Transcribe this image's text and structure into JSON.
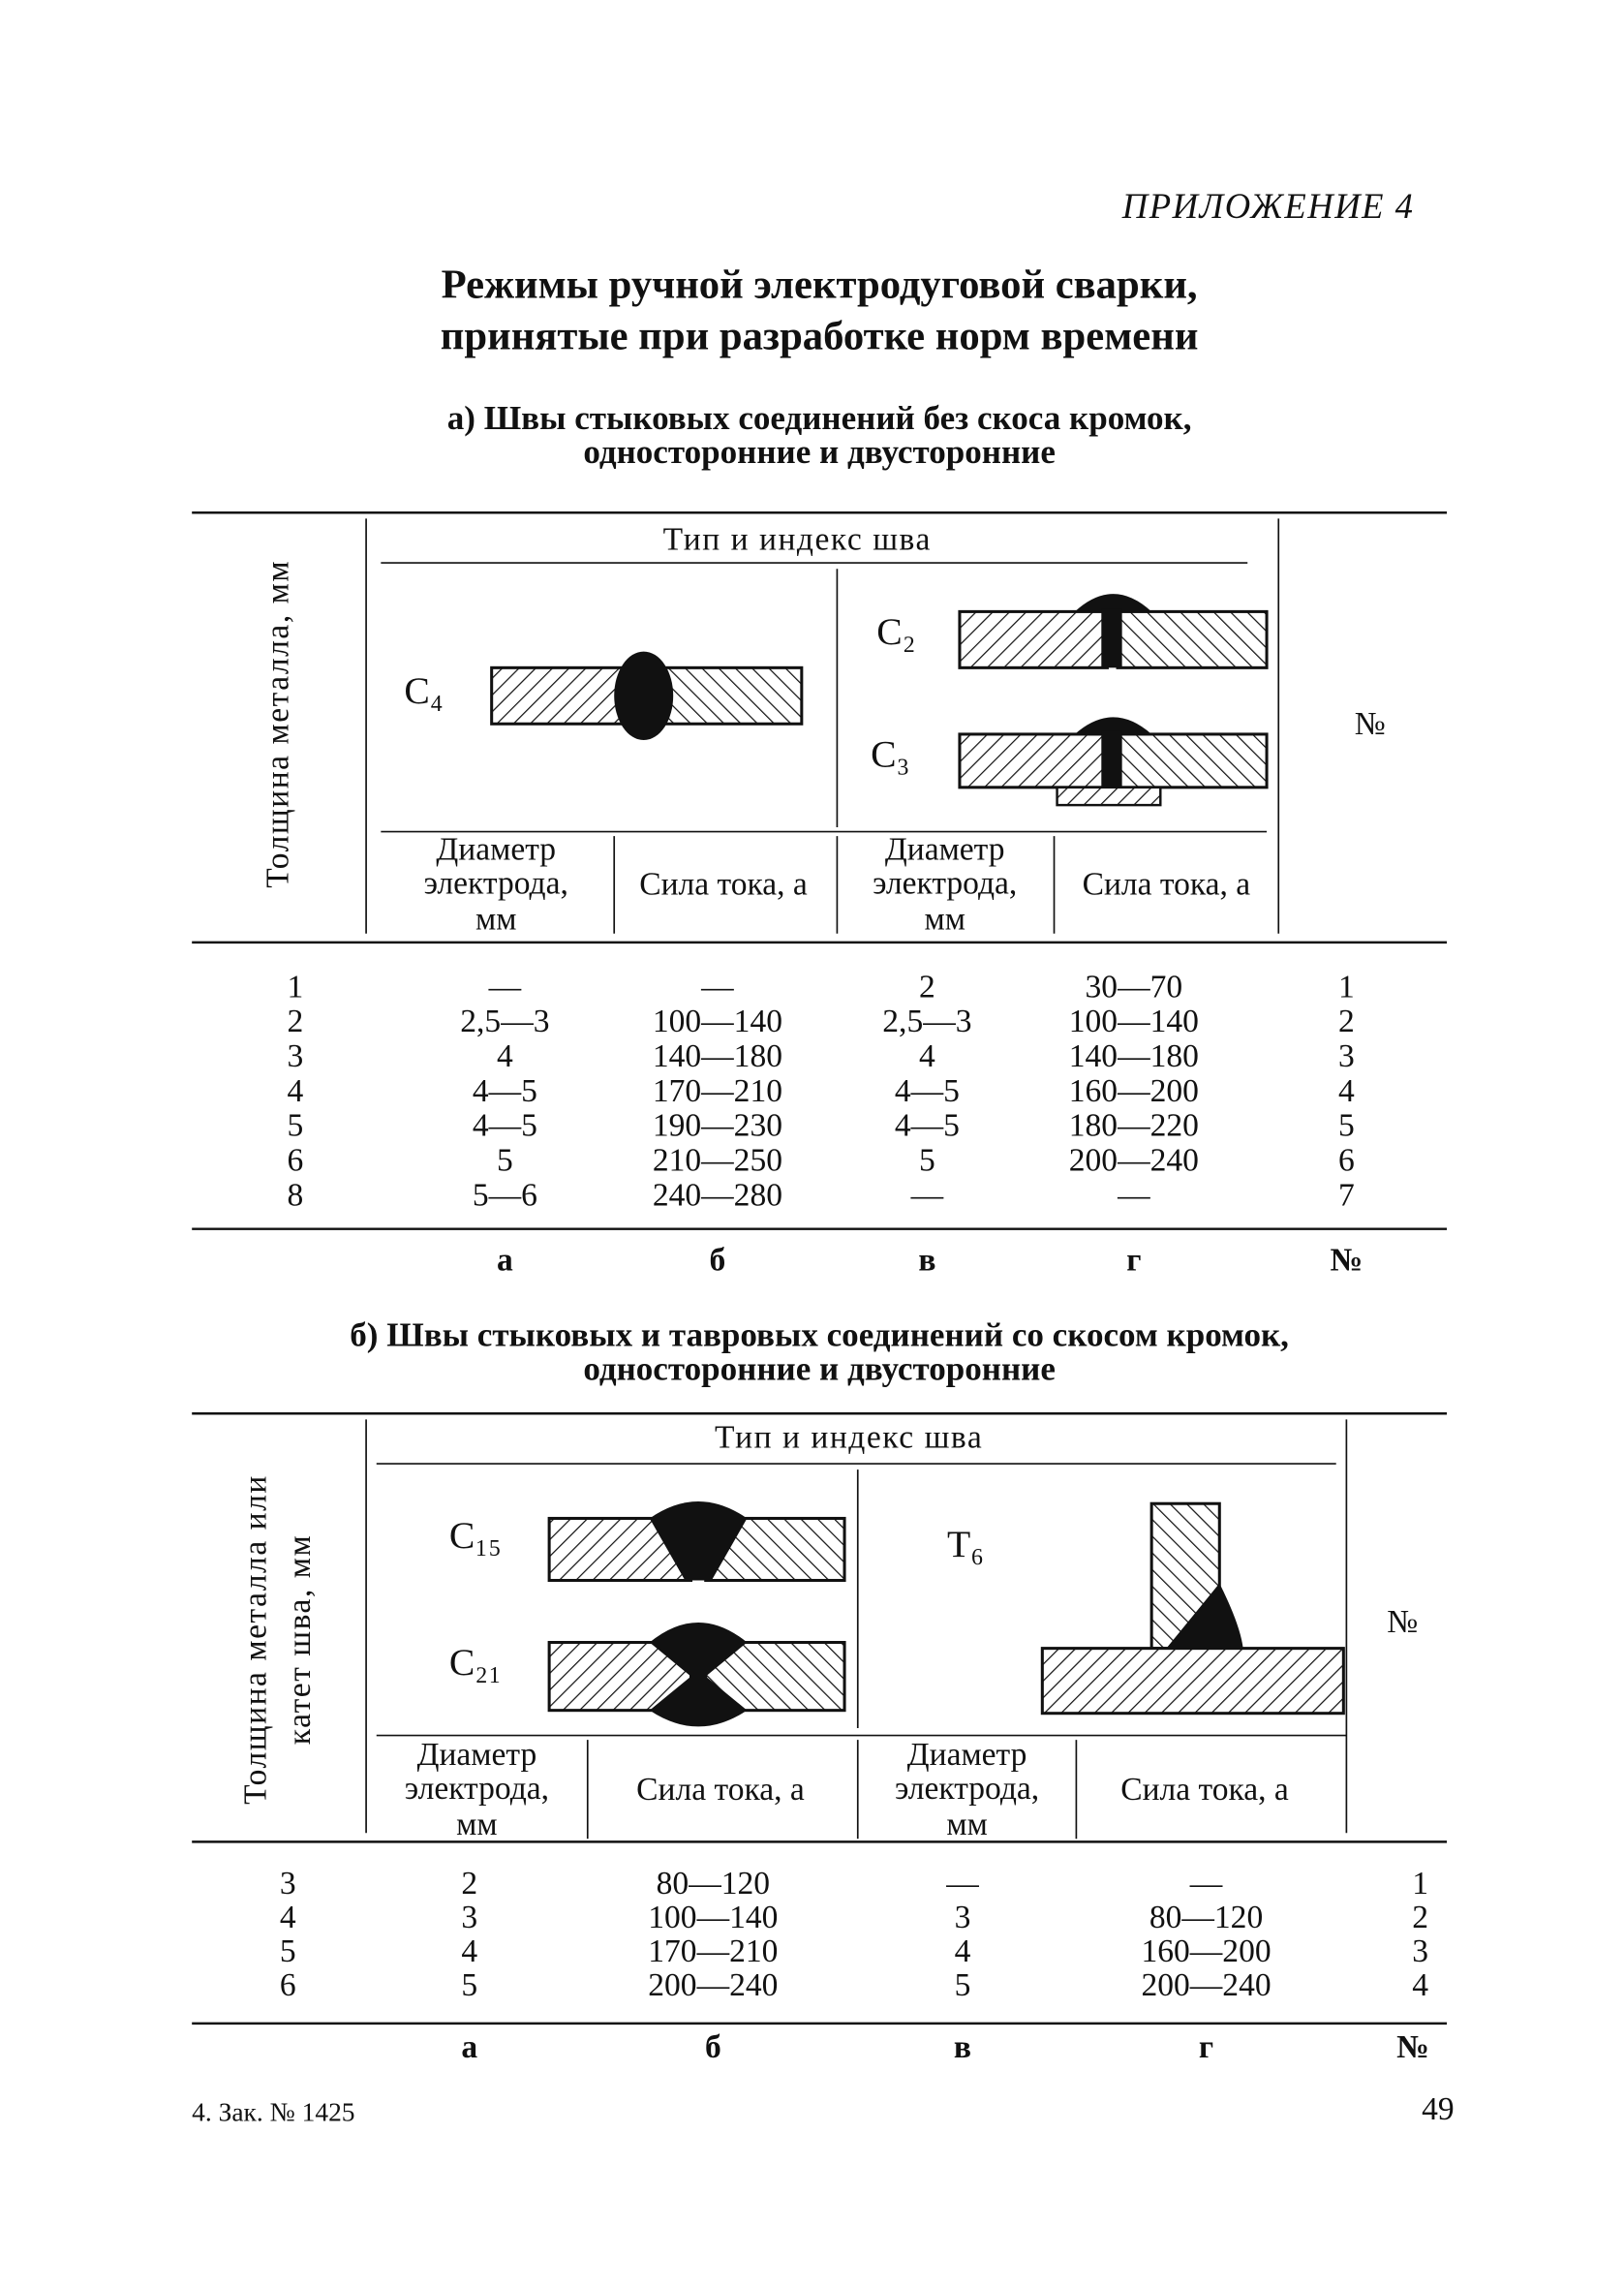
{
  "appendix": "ПРИЛОЖЕНИЕ 4",
  "title": [
    "Режимы ручной электродуговой сварки,",
    "принятые при разработке норм времени"
  ],
  "tables": [
    {
      "caption": [
        "а) Швы стыковых соединений без скоса кромок,",
        "односторонние и двусторонние"
      ],
      "thickness_header": [
        "Толщина металла, мм"
      ],
      "type_header": "Тип и индекс шва",
      "weld_labels": [
        "C₄",
        "C₂",
        "C₃"
      ],
      "number_header": "№",
      "sub_headers": [
        [
          "Диаметр",
          "электрода,",
          "мм"
        ],
        [
          "Сила тока, а"
        ],
        [
          "Диаметр",
          "электрода,",
          "мм"
        ],
        [
          "Сила тока, а"
        ]
      ],
      "rows": [
        [
          "1",
          "—",
          "—",
          "2",
          "30—70",
          "1"
        ],
        [
          "2",
          "2,5—3",
          "100—140",
          "2,5—3",
          "100—140",
          "2"
        ],
        [
          "3",
          "4",
          "140—180",
          "4",
          "140—180",
          "3"
        ],
        [
          "4",
          "4—5",
          "170—210",
          "4—5",
          "160—200",
          "4"
        ],
        [
          "5",
          "4—5",
          "190—230",
          "4—5",
          "180—220",
          "5"
        ],
        [
          "6",
          "5",
          "210—250",
          "5",
          "200—240",
          "6"
        ],
        [
          "8",
          "5—6",
          "240—280",
          "—",
          "—",
          "7"
        ]
      ],
      "column_letters": [
        "а",
        "б",
        "в",
        "г",
        "№"
      ]
    },
    {
      "caption": [
        "б) Швы стыковых и тавровых соединений со скосом кромок,",
        "односторонние и двусторонние"
      ],
      "thickness_header": [
        "Толщина металла или",
        "катет шва, мм"
      ],
      "type_header": "Тип и индекс шва",
      "weld_labels": [
        "C₁₅",
        "C₂₁",
        "T₆"
      ],
      "number_header": "№",
      "sub_headers": [
        [
          "Диаметр",
          "электрода,",
          "мм"
        ],
        [
          "Сила тока, а"
        ],
        [
          "Диаметр",
          "электрода,",
          "мм"
        ],
        [
          "Сила тока, а"
        ]
      ],
      "rows": [
        [
          "3",
          "2",
          "80—120",
          "—",
          "—",
          "1"
        ],
        [
          "4",
          "3",
          "100—140",
          "3",
          "80—120",
          "2"
        ],
        [
          "5",
          "4",
          "170—210",
          "4",
          "160—200",
          "3"
        ],
        [
          "6",
          "5",
          "200—240",
          "5",
          "200—240",
          "4"
        ]
      ],
      "column_letters": [
        "а",
        "б",
        "в",
        "г",
        "№"
      ]
    }
  ],
  "footer": {
    "left": "4. Зак. № 1425",
    "page": "49"
  }
}
